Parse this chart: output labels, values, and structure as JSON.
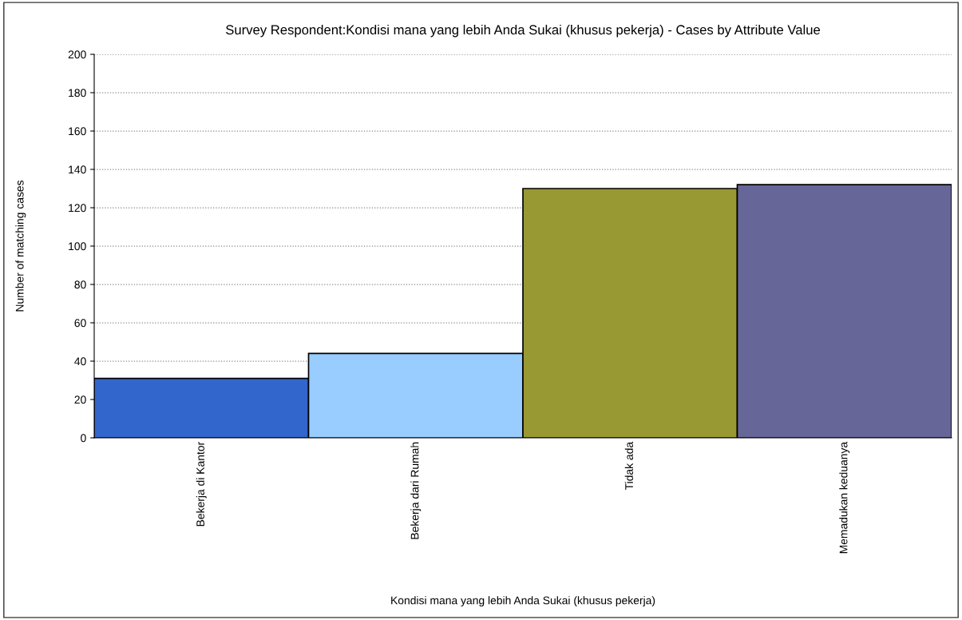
{
  "chart_data": {
    "type": "bar",
    "title": "Survey Respondent:Kondisi mana yang lebih Anda Sukai (khusus pekerja) - Cases by Attribute Value",
    "xlabel": "Kondisi mana yang lebih Anda Sukai (khusus pekerja)",
    "ylabel": "Number of matching cases",
    "categories": [
      "Bekerja di Kantor",
      "Bekerja dari Rumah",
      "Tidak ada",
      "Memadukan keduanya"
    ],
    "values": [
      31,
      44,
      130,
      132
    ],
    "colors": [
      "#3366cc",
      "#99ccff",
      "#999933",
      "#666699"
    ],
    "ylim": [
      0,
      200
    ],
    "yticks": [
      0,
      20,
      40,
      60,
      80,
      100,
      120,
      140,
      160,
      180,
      200
    ],
    "grid": "y",
    "legend": false
  }
}
